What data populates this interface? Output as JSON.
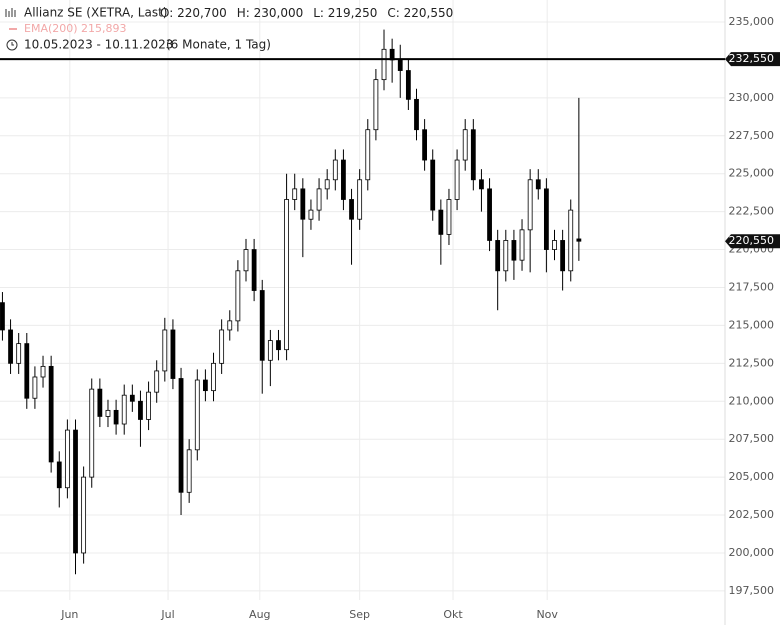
{
  "chart_data": {
    "type": "candlestick",
    "title": "Allianz SE (XETRA, Last)",
    "stats": [
      "O: 220,700",
      "H: 230,000",
      "L: 219,250",
      "C: 220,550"
    ],
    "indicator": "EMA(200)  215,893",
    "period": "10.05.2023 - 10.11.2023",
    "period_note": "(6 Monate, 1 Tag)",
    "open": [
      216.5,
      214.7,
      212.5,
      213.8,
      210.2,
      211.6,
      212.3,
      206.0,
      204.3,
      208.1,
      200.0,
      205.0,
      210.8,
      209.0,
      209.4,
      208.5,
      210.4,
      210.0,
      208.8,
      210.6,
      212.0,
      214.7,
      211.5,
      204.0,
      206.8,
      211.4,
      210.7,
      212.5,
      214.7,
      215.3,
      218.6,
      220.0,
      217.3,
      212.7,
      214.0,
      213.4,
      223.3,
      224.0,
      222.0,
      222.6,
      224.0,
      224.6,
      225.9,
      223.3,
      222.0,
      224.6,
      227.9,
      231.2,
      233.2,
      232.5,
      231.8,
      229.9,
      227.9,
      225.9,
      222.6,
      221.0,
      223.3,
      225.9,
      227.9,
      224.6,
      224.0,
      220.6,
      218.6,
      220.6,
      219.3,
      221.3,
      224.6,
      224.0,
      220.0,
      220.6,
      218.6,
      220.7
    ],
    "high": [
      217.2,
      215.4,
      214.5,
      214.5,
      212.3,
      213.0,
      213.0,
      206.7,
      208.8,
      208.8,
      205.7,
      211.5,
      211.5,
      210.1,
      210.1,
      211.1,
      211.1,
      210.7,
      211.3,
      212.7,
      215.5,
      215.4,
      212.2,
      207.5,
      212.1,
      212.1,
      213.2,
      215.4,
      216.0,
      219.3,
      220.7,
      220.7,
      218.0,
      214.7,
      214.7,
      225.0,
      225.0,
      224.7,
      223.3,
      224.7,
      225.3,
      226.6,
      226.6,
      224.0,
      225.3,
      228.6,
      231.9,
      234.5,
      233.9,
      233.5,
      232.5,
      230.6,
      228.6,
      226.6,
      223.3,
      224.0,
      226.6,
      228.6,
      228.6,
      225.3,
      224.7,
      221.3,
      221.3,
      221.3,
      222.0,
      225.3,
      225.3,
      224.7,
      221.3,
      221.3,
      223.3,
      230.0
    ],
    "low": [
      214.0,
      211.8,
      211.8,
      209.5,
      209.5,
      210.9,
      205.3,
      203.0,
      203.6,
      198.6,
      199.3,
      204.3,
      208.3,
      208.3,
      207.8,
      207.8,
      209.3,
      207.0,
      208.1,
      209.9,
      211.3,
      210.8,
      202.5,
      203.3,
      206.1,
      210.0,
      210.0,
      211.8,
      214.0,
      214.6,
      217.9,
      216.6,
      210.5,
      211.0,
      212.7,
      212.7,
      222.6,
      219.5,
      221.3,
      221.9,
      223.3,
      223.9,
      222.6,
      219.0,
      221.3,
      223.9,
      227.2,
      230.5,
      231.0,
      230.0,
      229.2,
      227.2,
      225.2,
      221.9,
      219.0,
      220.3,
      222.6,
      225.2,
      223.9,
      222.5,
      219.9,
      216.0,
      217.9,
      218.0,
      218.6,
      218.5,
      223.3,
      218.5,
      219.3,
      217.3,
      217.9,
      219.25
    ],
    "close": [
      214.7,
      212.5,
      213.8,
      210.2,
      211.6,
      212.3,
      206.0,
      204.3,
      208.1,
      200.0,
      205.0,
      210.8,
      209.0,
      209.4,
      208.5,
      210.4,
      210.0,
      208.8,
      210.6,
      212.0,
      214.7,
      211.5,
      204.0,
      206.8,
      211.4,
      210.7,
      212.5,
      214.7,
      215.3,
      218.6,
      220.0,
      217.3,
      212.7,
      214.0,
      213.4,
      223.3,
      224.0,
      222.0,
      222.6,
      224.0,
      224.6,
      225.9,
      223.3,
      222.0,
      224.6,
      227.9,
      231.2,
      233.2,
      232.5,
      231.8,
      229.9,
      227.9,
      225.9,
      222.6,
      221.0,
      223.3,
      225.9,
      227.9,
      224.6,
      224.0,
      220.6,
      218.6,
      220.6,
      219.3,
      221.3,
      224.6,
      224.0,
      220.0,
      220.6,
      218.6,
      222.6,
      220.55
    ],
    "close_label": "220,550",
    "price_line": {
      "value": 232.55,
      "label": "232,550"
    },
    "xlim": [
      -0.3,
      89
    ],
    "xticks": [
      {
        "value": 8.3,
        "label": "Jun"
      },
      {
        "value": 20.4,
        "label": "Jul"
      },
      {
        "value": 31.7,
        "label": "Aug"
      },
      {
        "value": 44.0,
        "label": "Sep"
      },
      {
        "value": 55.5,
        "label": "Okt"
      },
      {
        "value": 67.1,
        "label": "Nov"
      }
    ],
    "ylim": [
      196.9,
      236.45
    ],
    "yticks": [
      {
        "value": 197.5,
        "label": "197,500"
      },
      {
        "value": 200,
        "label": "200,000"
      },
      {
        "value": 202.5,
        "label": "202,500"
      },
      {
        "value": 205,
        "label": "205,000"
      },
      {
        "value": 207.5,
        "label": "207,500"
      },
      {
        "value": 210,
        "label": "210,000"
      },
      {
        "value": 212.5,
        "label": "212,500"
      },
      {
        "value": 215,
        "label": "215,000"
      },
      {
        "value": 217.5,
        "label": "217,500"
      },
      {
        "value": 220,
        "label": "220,000"
      },
      {
        "value": 222.5,
        "label": "222,500"
      },
      {
        "value": 225,
        "label": "225,000"
      },
      {
        "value": 227.5,
        "label": "227,500"
      },
      {
        "value": 230,
        "label": "230,000"
      },
      {
        "value": 232.5,
        "label": "232,500"
      },
      {
        "value": 235,
        "label": "235,000"
      }
    ],
    "grid": true
  }
}
